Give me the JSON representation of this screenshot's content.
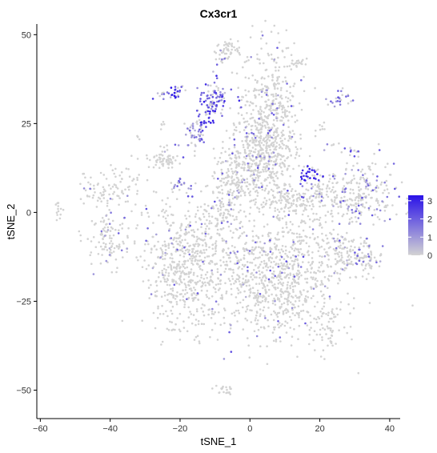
{
  "chart_data": {
    "type": "scatter",
    "title": "Cx3cr1",
    "xlabel": "tSNE_1",
    "ylabel": "tSNE_2",
    "xlim": [
      -61,
      43
    ],
    "ylim": [
      -58,
      53
    ],
    "xticks": [
      -60,
      -40,
      -20,
      0,
      20,
      40
    ],
    "yticks": [
      -50,
      -25,
      0,
      25,
      50
    ],
    "grid": false,
    "legend": {
      "placement": "right",
      "type": "colorbar",
      "range": [
        0,
        3.3
      ],
      "ticks": [
        0,
        1,
        2,
        3
      ],
      "low_color": "#d3d3d3",
      "high_color": "#2a12e8"
    },
    "clusters": [
      {
        "cx": -6,
        "cy": 46,
        "sx": 2,
        "sy": 1.5,
        "n": 50,
        "expr": 0.05
      },
      {
        "cx": -9,
        "cy": 43,
        "sx": 1,
        "sy": 0.8,
        "n": 8,
        "expr": 0.6
      },
      {
        "cx": 14,
        "cy": 42,
        "sx": 1.5,
        "sy": 0.6,
        "n": 15,
        "expr": 0
      },
      {
        "cx": -21,
        "cy": 34,
        "sx": 1,
        "sy": 1,
        "n": 20,
        "expr": 2.6
      },
      {
        "cx": -25,
        "cy": 33,
        "sx": 1.2,
        "sy": 0.6,
        "n": 12,
        "expr": 1.6
      },
      {
        "cx": -10,
        "cy": 32,
        "sx": 2.5,
        "sy": 2,
        "n": 80,
        "expr": 1.8
      },
      {
        "cx": -12,
        "cy": 28,
        "sx": 1.5,
        "sy": 1.5,
        "n": 30,
        "expr": 2.2
      },
      {
        "cx": 26,
        "cy": 32,
        "sx": 2,
        "sy": 1.5,
        "n": 25,
        "expr": 1.5
      },
      {
        "cx": -16,
        "cy": 22,
        "sx": 2,
        "sy": 2,
        "n": 45,
        "expr": 1.2
      },
      {
        "cx": -25,
        "cy": 24,
        "sx": 0.6,
        "sy": 0.6,
        "n": 5,
        "expr": 0
      },
      {
        "cx": -32,
        "cy": 21,
        "sx": 0.4,
        "sy": 0.4,
        "n": 3,
        "expr": 0
      },
      {
        "cx": 21,
        "cy": 24,
        "sx": 1,
        "sy": 1,
        "n": 8,
        "expr": 0
      },
      {
        "cx": 24,
        "cy": 19,
        "sx": 0.6,
        "sy": 0.6,
        "n": 4,
        "expr": 0
      },
      {
        "cx": 30,
        "cy": 17,
        "sx": 1,
        "sy": 1,
        "n": 10,
        "expr": 2.4
      },
      {
        "cx": 6,
        "cy": 27,
        "sx": 4,
        "sy": 10,
        "n": 450,
        "expr": 0.06
      },
      {
        "cx": 3,
        "cy": 15,
        "sx": 5,
        "sy": 6,
        "n": 350,
        "expr": 0.06
      },
      {
        "cx": -5,
        "cy": 9,
        "sx": 3,
        "sy": 5,
        "n": 150,
        "expr": 0.1
      },
      {
        "cx": -9,
        "cy": 0,
        "sx": 2.5,
        "sy": 3,
        "n": 70,
        "expr": 0.05
      },
      {
        "cx": 17,
        "cy": 11,
        "sx": 1.5,
        "sy": 1.2,
        "n": 30,
        "expr": 3.1
      },
      {
        "cx": -24,
        "cy": 15,
        "sx": 3,
        "sy": 1.5,
        "n": 60,
        "expr": 0.05
      },
      {
        "cx": -20,
        "cy": 8,
        "sx": 2,
        "sy": 1.8,
        "n": 20,
        "expr": 0.6
      },
      {
        "cx": -39,
        "cy": 7,
        "sx": 5,
        "sy": 3,
        "n": 100,
        "expr": 0.05
      },
      {
        "cx": -55,
        "cy": 0,
        "sx": 0.6,
        "sy": 1.4,
        "n": 14,
        "expr": 0
      },
      {
        "cx": -40,
        "cy": -8,
        "sx": 3,
        "sy": 3.5,
        "n": 110,
        "expr": 0.1
      },
      {
        "cx": -18,
        "cy": -15,
        "sx": 6,
        "sy": 9,
        "n": 600,
        "expr": 0.04
      },
      {
        "cx": 8,
        "cy": -18,
        "sx": 9,
        "sy": 9,
        "n": 900,
        "expr": 0.05
      },
      {
        "cx": 11,
        "cy": 3,
        "sx": 4,
        "sy": 2.5,
        "n": 110,
        "expr": 0.1
      },
      {
        "cx": 20,
        "cy": 6,
        "sx": 1.5,
        "sy": 1.2,
        "n": 20,
        "expr": 0
      },
      {
        "cx": 30,
        "cy": 5,
        "sx": 7,
        "sy": 5,
        "n": 300,
        "expr": 0.2
      },
      {
        "cx": 28,
        "cy": -12,
        "sx": 4,
        "sy": 2.5,
        "n": 120,
        "expr": 0.15
      },
      {
        "cx": 34,
        "cy": -14,
        "sx": 2,
        "sy": 2,
        "n": 40,
        "expr": 0.2
      },
      {
        "cx": 22,
        "cy": -32,
        "sx": 2,
        "sy": 4,
        "n": 50,
        "expr": 0
      },
      {
        "cx": -15,
        "cy": -35,
        "sx": 0.8,
        "sy": 1,
        "n": 6,
        "expr": 0
      },
      {
        "cx": -8,
        "cy": -50,
        "sx": 1.5,
        "sy": 0.7,
        "n": 20,
        "expr": 0
      },
      {
        "cx": -15,
        "cy": 25,
        "sx": 0.5,
        "sy": 0.5,
        "n": 4,
        "expr": 0
      }
    ]
  }
}
